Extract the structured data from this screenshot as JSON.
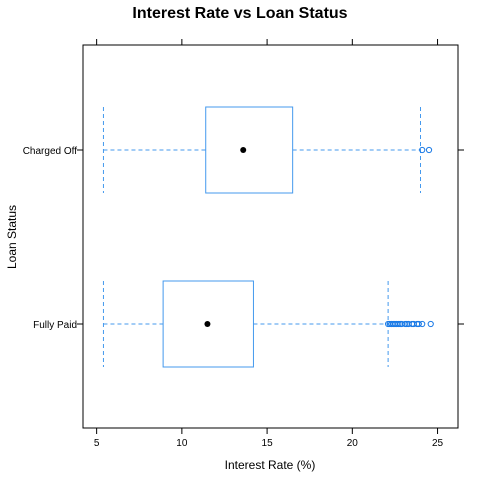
{
  "chart_data": {
    "type": "box",
    "title": "Interest Rate vs Loan Status",
    "xlabel": "Interest Rate (%)",
    "ylabel": "Loan Status",
    "xlim": [
      4.2,
      26.2
    ],
    "xticks": [
      5,
      10,
      15,
      20,
      25
    ],
    "xtick_labels": [
      "5",
      "10",
      "15",
      "20",
      "25"
    ],
    "categories": [
      "Charged Off",
      "Fully Paid"
    ],
    "colors": {
      "box": "#4499ee",
      "outlier": "#1a7ae6",
      "median": "#000000",
      "frame": "#000000"
    },
    "boxes": [
      {
        "category": "Charged Off",
        "whisker_low": 5.4,
        "q1": 11.4,
        "median": 13.6,
        "q3": 16.5,
        "whisker_high": 24.0,
        "outliers": [
          24.1,
          24.5
        ]
      },
      {
        "category": "Fully Paid",
        "whisker_low": 5.4,
        "q1": 8.9,
        "median": 11.5,
        "q3": 14.2,
        "whisker_high": 22.1,
        "outliers": [
          22.1,
          22.2,
          22.3,
          22.4,
          22.5,
          22.6,
          22.7,
          22.8,
          22.9,
          23.1,
          23.2,
          23.3,
          23.5,
          23.6,
          23.8,
          23.9,
          24.1,
          24.6
        ]
      }
    ]
  }
}
